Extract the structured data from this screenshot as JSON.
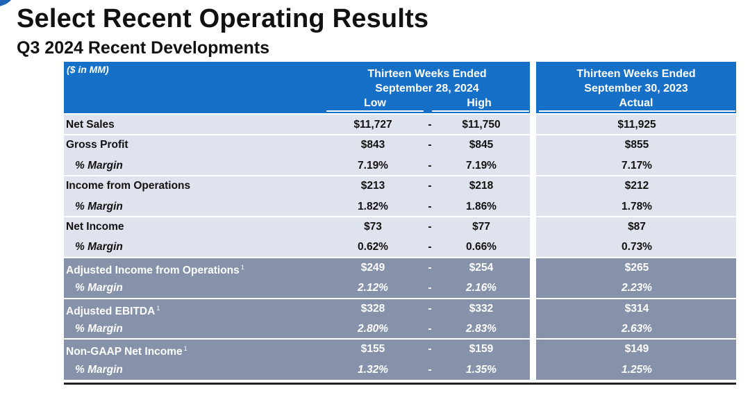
{
  "header": {
    "title": "Select Recent Operating Results",
    "subtitle": "Q3 2024 Recent Developments"
  },
  "table": {
    "units": "($ in MM)",
    "current_period": {
      "line1": "Thirteen Weeks Ended",
      "line2": "September 28, 2024",
      "low_label": "Low",
      "high_label": "High"
    },
    "prior_period": {
      "line1": "Thirteen Weeks Ended",
      "line2": "September 30, 2023",
      "actual_label": "Actual"
    },
    "dash": "-",
    "rows": [
      {
        "label": "Net Sales",
        "low": "$11,727",
        "high": "$11,750",
        "actual": "$11,925"
      },
      {
        "label": "Gross Profit",
        "low": "$843",
        "high": "$845",
        "actual": "$855"
      },
      {
        "label": "% Margin",
        "low": "7.19%",
        "high": "7.19%",
        "actual": "7.17%"
      },
      {
        "label": "Income from Operations",
        "low": "$213",
        "high": "$218",
        "actual": "$212"
      },
      {
        "label": "% Margin",
        "low": "1.82%",
        "high": "1.86%",
        "actual": "1.78%"
      },
      {
        "label": "Net Income",
        "low": "$73",
        "high": "$77",
        "actual": "$87"
      },
      {
        "label": "% Margin",
        "low": "0.62%",
        "high": "0.66%",
        "actual": "0.73%"
      },
      {
        "label": "Adjusted Income from Operations",
        "footnote": "1",
        "low": "$249",
        "high": "$254",
        "actual": "$265"
      },
      {
        "label": "% Margin",
        "low": "2.12%",
        "high": "2.16%",
        "actual": "2.23%"
      },
      {
        "label": "Adjusted EBITDA",
        "footnote": "1",
        "low": "$328",
        "high": "$332",
        "actual": "$314"
      },
      {
        "label": "% Margin",
        "low": "2.80%",
        "high": "2.83%",
        "actual": "2.63%"
      },
      {
        "label": "Non-GAAP Net Income",
        "footnote": "1",
        "low": "$155",
        "high": "$159",
        "actual": "$149"
      },
      {
        "label": "% Margin",
        "low": "1.32%",
        "high": "1.35%",
        "actual": "1.25%"
      }
    ]
  },
  "colors": {
    "header_blue": "#1670c8",
    "gaap_row_bg": "#dfe3ee",
    "non_gaap_row_bg": "#8592a9"
  }
}
